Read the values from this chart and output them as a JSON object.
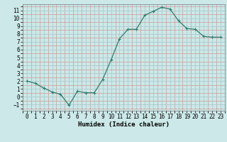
{
  "x": [
    0,
    1,
    2,
    3,
    4,
    5,
    6,
    7,
    8,
    9,
    10,
    11,
    12,
    13,
    14,
    15,
    16,
    17,
    18,
    19,
    20,
    21,
    22,
    23
  ],
  "y": [
    2.0,
    1.7,
    1.1,
    0.6,
    0.3,
    -1.1,
    0.7,
    0.5,
    0.5,
    2.2,
    4.7,
    7.4,
    8.6,
    8.6,
    10.4,
    10.9,
    11.4,
    11.2,
    9.7,
    8.7,
    8.6,
    7.7,
    7.6,
    7.6
  ],
  "line_color": "#2e7d6e",
  "marker_color": "#2e7d6e",
  "bg_color": "#cce8e8",
  "minor_grid_color": "#cc9999",
  "major_grid_color": "#aacccc",
  "xlabel": "Humidex (Indice chaleur)",
  "xlim": [
    -0.5,
    23.5
  ],
  "ylim": [
    -1.8,
    11.8
  ],
  "yticks": [
    -1,
    0,
    1,
    2,
    3,
    4,
    5,
    6,
    7,
    8,
    9,
    10,
    11
  ],
  "xticks": [
    0,
    1,
    2,
    3,
    4,
    5,
    6,
    7,
    8,
    9,
    10,
    11,
    12,
    13,
    14,
    15,
    16,
    17,
    18,
    19,
    20,
    21,
    22,
    23
  ],
  "axis_fontsize": 6.5,
  "tick_fontsize": 5.5
}
